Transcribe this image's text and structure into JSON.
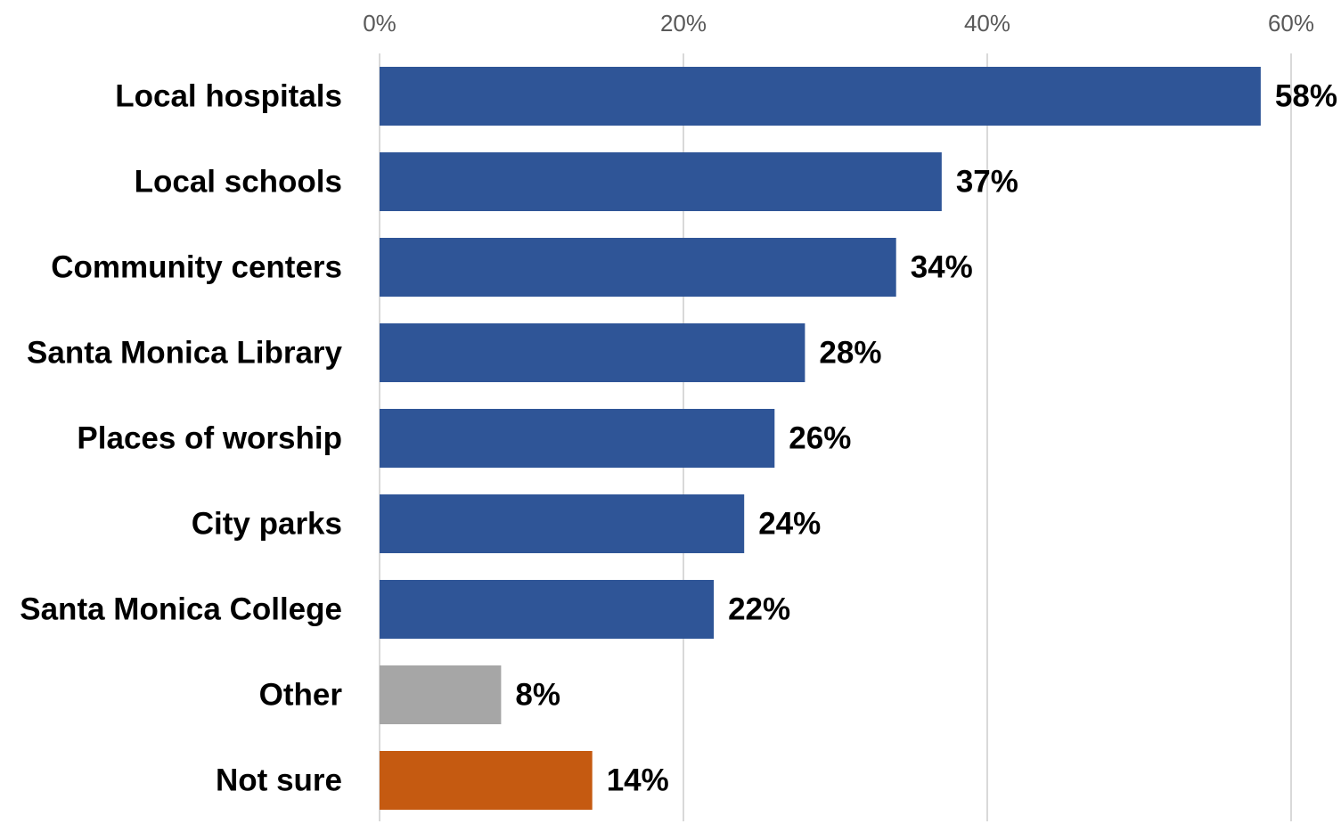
{
  "chart_data": {
    "type": "bar",
    "orientation": "horizontal",
    "categories": [
      "Local hospitals",
      "Local schools",
      "Community centers",
      "Santa Monica Library",
      "Places of worship",
      "City parks",
      "Santa Monica College",
      "Other",
      "Not sure"
    ],
    "values": [
      58,
      37,
      34,
      28,
      26,
      24,
      22,
      8,
      14
    ],
    "value_labels": [
      "58%",
      "37%",
      "34%",
      "28%",
      "26%",
      "24%",
      "22%",
      "8%",
      "14%"
    ],
    "bar_colors": [
      "#2f5597",
      "#2f5597",
      "#2f5597",
      "#2f5597",
      "#2f5597",
      "#2f5597",
      "#2f5597",
      "#a6a6a6",
      "#c55a11"
    ],
    "xlim": [
      0,
      60
    ],
    "x_ticks": [
      0,
      20,
      40,
      60
    ],
    "x_tick_labels": [
      "0%",
      "20%",
      "40%",
      "60%"
    ],
    "axis_position": "top",
    "grid": true,
    "legend": "none",
    "title": "",
    "xlabel": "",
    "ylabel": ""
  }
}
